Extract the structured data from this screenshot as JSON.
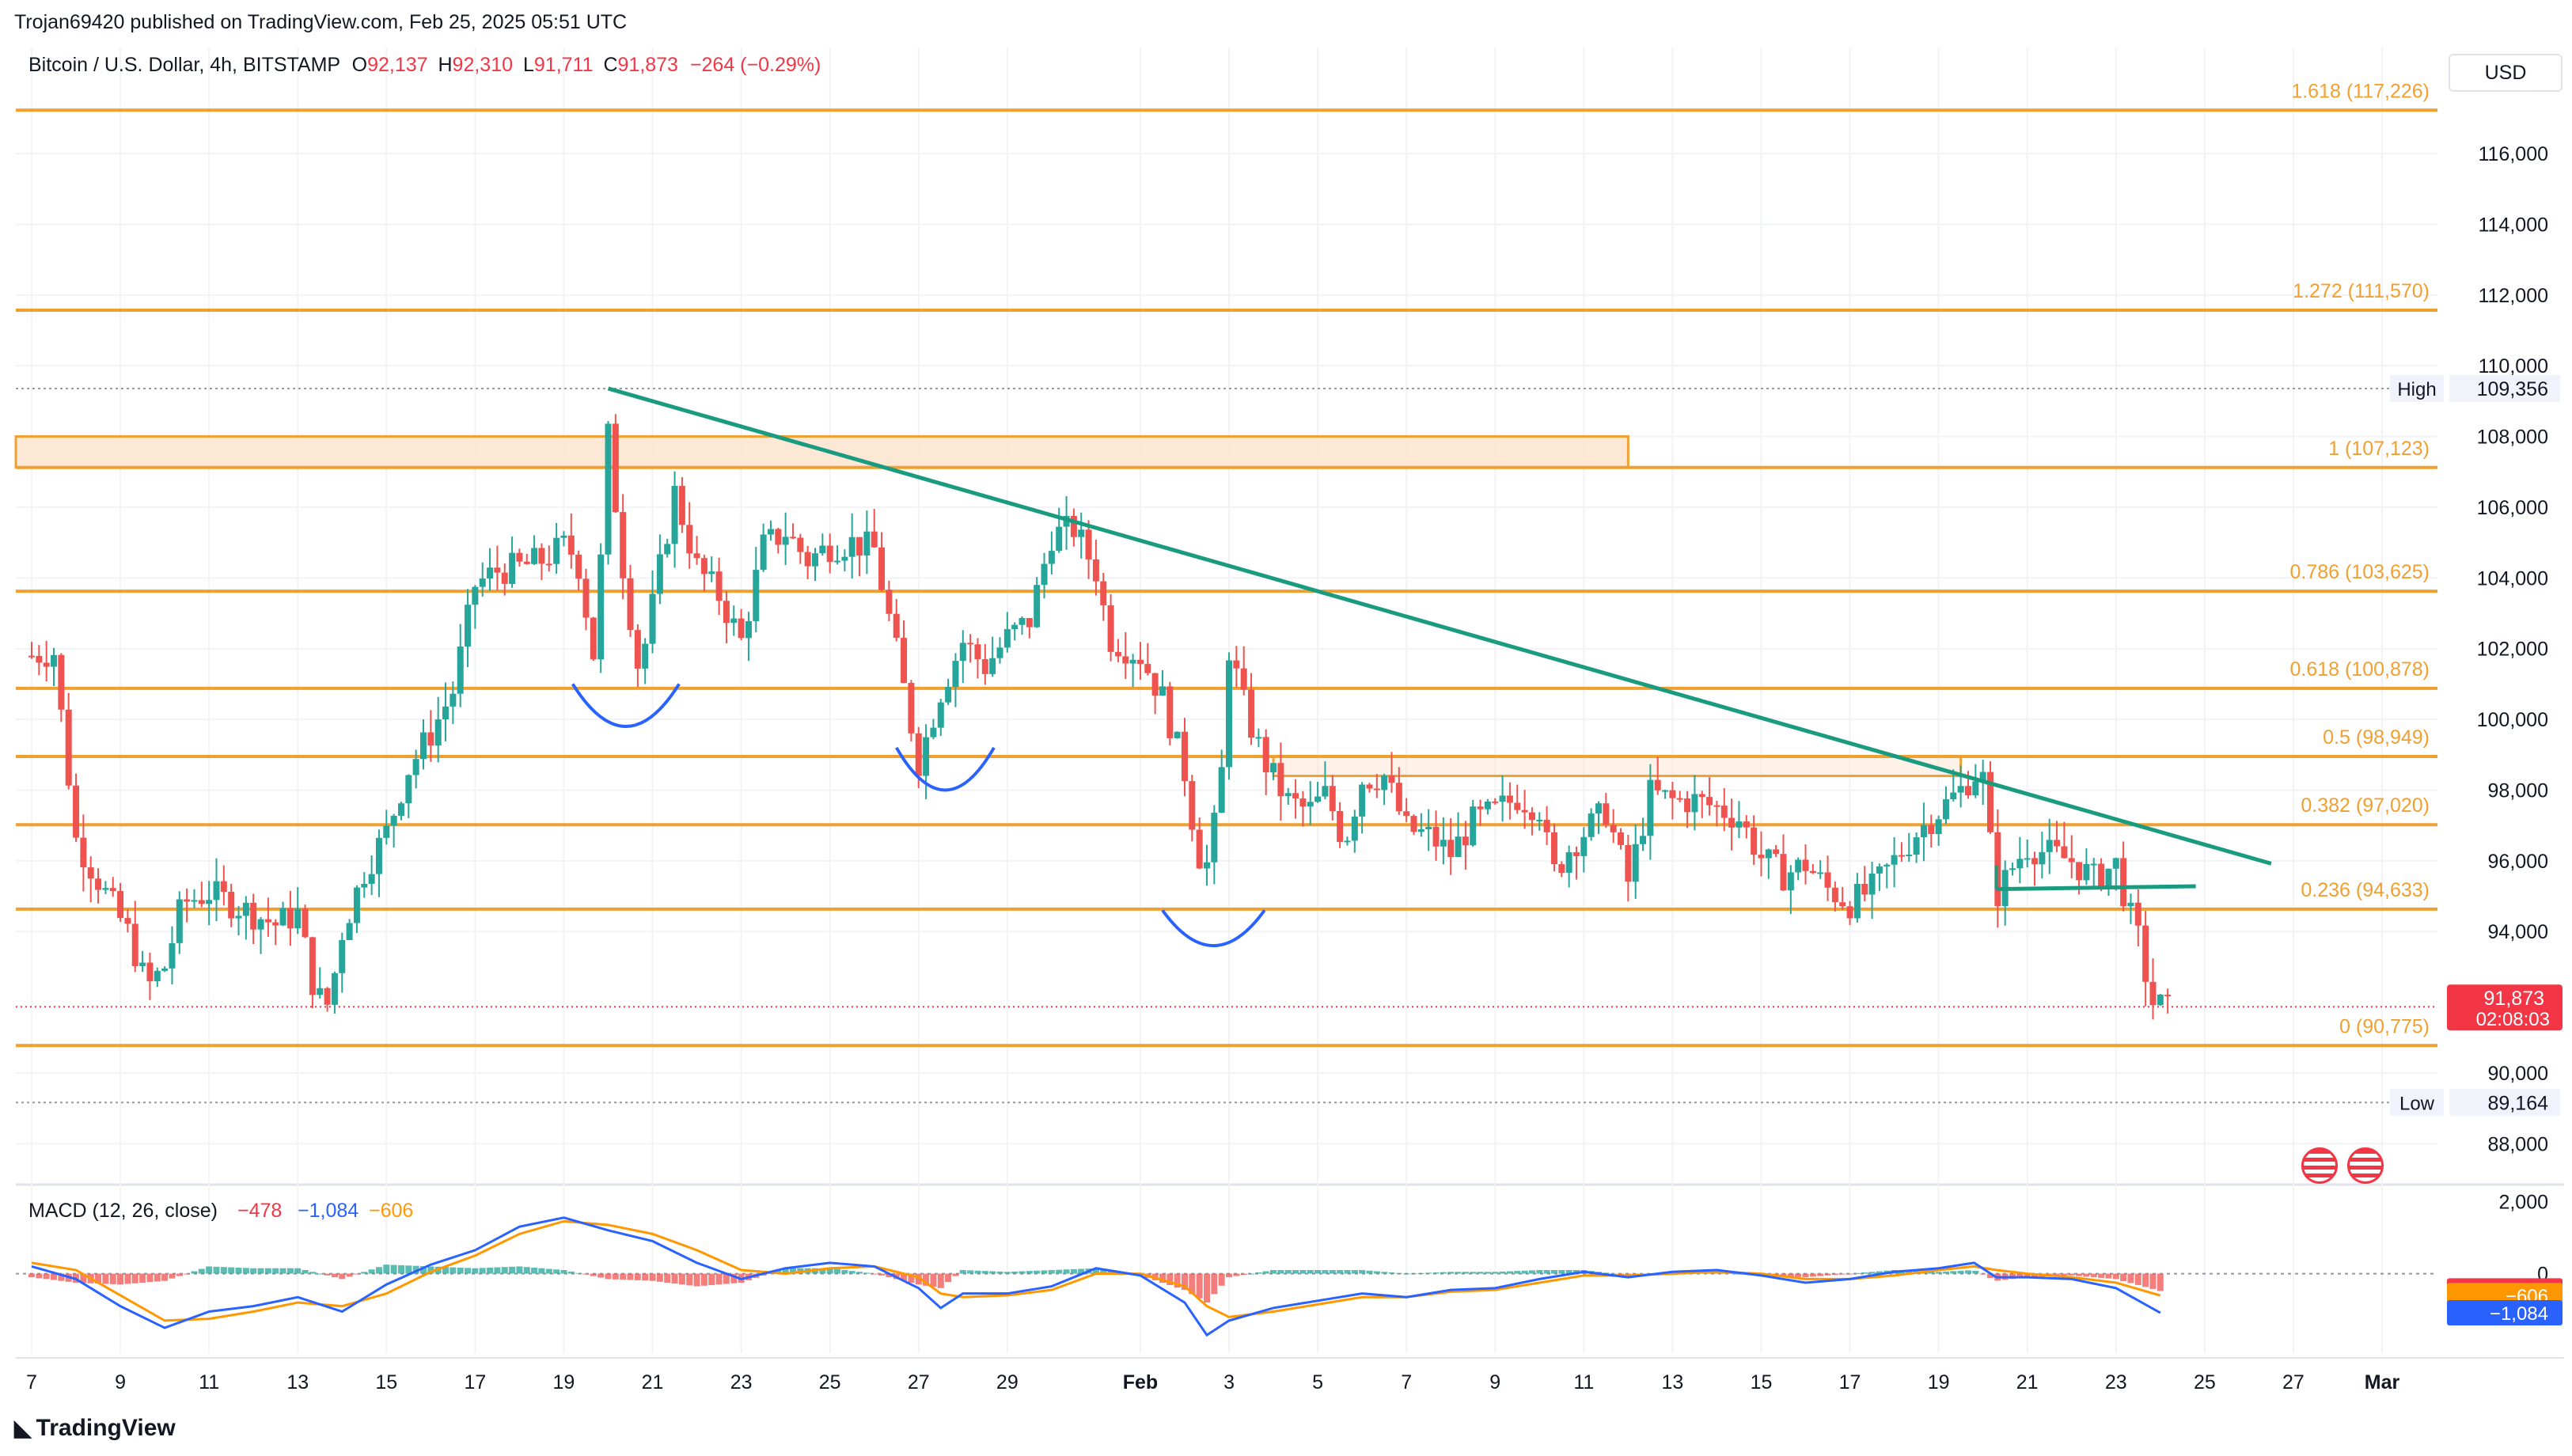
{
  "header": {
    "published": "Trojan69420 published on TradingView.com, Feb 25, 2025 05:51 UTC",
    "symbol": "Bitcoin / U.S. Dollar, 4h, BITSTAMP",
    "open_label": "O",
    "open": "92,137",
    "high_label": "H",
    "high": "92,310",
    "low_label": "L",
    "low": "91,711",
    "close_label": "C",
    "close": "91,873",
    "change": "−264 (−0.29%)",
    "currency": "USD"
  },
  "footer": {
    "brand": "TradingView"
  },
  "colors": {
    "up": "#26a69a",
    "down": "#ef5350",
    "fib": "#f0a030",
    "trend": "#1a9b80",
    "arc": "#2962ff",
    "macd": "#2962ff",
    "signal": "#ff9800",
    "price_tag": "#f23645"
  },
  "chart_data": [
    {
      "type": "candlestick",
      "interval": "4h",
      "x_ticks": [
        "7",
        "9",
        "11",
        "13",
        "15",
        "17",
        "19",
        "21",
        "23",
        "25",
        "27",
        "29",
        "Feb",
        "3",
        "5",
        "7",
        "9",
        "11",
        "13",
        "15",
        "17",
        "19",
        "21",
        "23",
        "25",
        "27",
        "Mar"
      ],
      "y_ticks": [
        "116,000",
        "114,000",
        "112,000",
        "110,000",
        "108,000",
        "106,000",
        "104,000",
        "102,000",
        "100,000",
        "98,000",
        "96,000",
        "94,000",
        "90,000",
        "88,000"
      ],
      "ylim": [
        87000,
        119000
      ],
      "price_path": [
        [
          7,
          101.8
        ],
        [
          7.5,
          101.9
        ],
        [
          8,
          96.6
        ],
        [
          8.7,
          95.0
        ],
        [
          9.2,
          93.9
        ],
        [
          9.6,
          92.4
        ],
        [
          10,
          93.0
        ],
        [
          10.4,
          94.8
        ],
        [
          11,
          95.1
        ],
        [
          11.5,
          94.8
        ],
        [
          12,
          94.5
        ],
        [
          12.5,
          94.2
        ],
        [
          13,
          94.5
        ],
        [
          13.4,
          92.2
        ],
        [
          13.7,
          91.9
        ],
        [
          14,
          94.0
        ],
        [
          14.5,
          95.7
        ],
        [
          15,
          96.8
        ],
        [
          15.5,
          98.6
        ],
        [
          16,
          99.6
        ],
        [
          16.5,
          100.8
        ],
        [
          17,
          103.8
        ],
        [
          17.5,
          104.2
        ],
        [
          18,
          104.3
        ],
        [
          18.5,
          104.5
        ],
        [
          19,
          104.9
        ],
        [
          19.3,
          104.6
        ],
        [
          19.7,
          101.6
        ],
        [
          20,
          108.0
        ],
        [
          20.3,
          104.6
        ],
        [
          20.7,
          101.3
        ],
        [
          21,
          103.2
        ],
        [
          21.5,
          106.4
        ],
        [
          22,
          104.3
        ],
        [
          22.5,
          103.5
        ],
        [
          23,
          102.2
        ],
        [
          23.5,
          104.9
        ],
        [
          24,
          105.3
        ],
        [
          24.5,
          104.5
        ],
        [
          25,
          104.9
        ],
        [
          25.5,
          105.0
        ],
        [
          26,
          104.8
        ],
        [
          26.5,
          101.9
        ],
        [
          27,
          98.8
        ],
        [
          27.5,
          100.8
        ],
        [
          28,
          102.2
        ],
        [
          28.5,
          101.5
        ],
        [
          29,
          102.3
        ],
        [
          29.5,
          102.8
        ],
        [
          30,
          105.2
        ],
        [
          30.5,
          105.4
        ],
        [
          31,
          104.2
        ],
        [
          31.3,
          102.3
        ],
        [
          31.7,
          102.0
        ],
        [
          32,
          101.8
        ],
        [
          32.5,
          100.6
        ],
        [
          33,
          98.5
        ],
        [
          33.3,
          96.2
        ],
        [
          33.5,
          95.9
        ],
        [
          33.8,
          97.8
        ],
        [
          34,
          102.0
        ],
        [
          34.4,
          100.1
        ],
        [
          34.8,
          98.8
        ],
        [
          35.3,
          97.7
        ],
        [
          35.8,
          97.4
        ],
        [
          36.2,
          97.9
        ],
        [
          36.6,
          96.5
        ],
        [
          37,
          98.3
        ],
        [
          37.5,
          98.4
        ],
        [
          38,
          96.9
        ],
        [
          38.5,
          96.7
        ],
        [
          39,
          96.2
        ],
        [
          39.5,
          97.1
        ],
        [
          40,
          97.4
        ],
        [
          40.5,
          97.8
        ],
        [
          41,
          97.5
        ],
        [
          41.3,
          95.6
        ],
        [
          41.7,
          96.4
        ],
        [
          42,
          96.8
        ],
        [
          42.5,
          97.4
        ],
        [
          43,
          95.4
        ],
        [
          43.5,
          97.9
        ],
        [
          44,
          97.7
        ],
        [
          44.5,
          97.7
        ],
        [
          45,
          97.5
        ],
        [
          45.5,
          97.2
        ],
        [
          46,
          96.1
        ],
        [
          46.5,
          95.6
        ],
        [
          47,
          95.9
        ],
        [
          47.5,
          95.2
        ],
        [
          48,
          94.8
        ],
        [
          48.5,
          95.2
        ],
        [
          49,
          96.0
        ],
        [
          49.5,
          96.8
        ],
        [
          50,
          97.4
        ],
        [
          50.5,
          98.0
        ],
        [
          50.8,
          98.5
        ],
        [
          51,
          98.3
        ],
        [
          51.3,
          95.0
        ],
        [
          51.7,
          95.9
        ],
        [
          52,
          96.4
        ],
        [
          52.5,
          96.2
        ],
        [
          53,
          96.0
        ],
        [
          53.5,
          95.5
        ],
        [
          54,
          95.9
        ],
        [
          54.3,
          94.5
        ],
        [
          54.5,
          93.8
        ],
        [
          54.8,
          92.0
        ],
        [
          55,
          91.9
        ],
        [
          55.2,
          91.8
        ]
      ],
      "annotations": [
        "High 109,356",
        "Low 89,164",
        "91,873",
        "02:08:03"
      ]
    },
    {
      "type": "horizontal_levels",
      "series": [
        {
          "name": "1.618 (117,226)",
          "value": 117226
        },
        {
          "name": "1.272 (111,570)",
          "value": 111570
        },
        {
          "name": "1 (107,123)",
          "value": 107123
        },
        {
          "name": "0.786 (103,625)",
          "value": 103625
        },
        {
          "name": "0.618 (100,878)",
          "value": 100878
        },
        {
          "name": "0.5 (98,949)",
          "value": 98949
        },
        {
          "name": "0.382 (97,020)",
          "value": 97020
        },
        {
          "name": "0.236 (94,633)",
          "value": 94633
        },
        {
          "name": "0 (90,775)",
          "value": 90775
        }
      ],
      "zones": [
        {
          "x": [
            7,
            43
          ],
          "y": [
            107123,
            108000
          ]
        },
        {
          "x": [
            35,
            50.5
          ],
          "y": [
            98400,
            98949
          ]
        }
      ],
      "trendline": {
        "x": [
          20,
          57.5
        ],
        "y": [
          109356,
          95920
        ]
      },
      "neckline": {
        "x": [
          51.3,
          55.8
        ],
        "y": [
          95200,
          95280
        ]
      },
      "arcs": [
        {
          "x": [
            19.2,
            21.6
          ],
          "center_y": 101000,
          "bottom_y": 99800
        },
        {
          "x": [
            26.5,
            28.7
          ],
          "center_y": 99200,
          "bottom_y": 98000
        },
        {
          "x": [
            32.5,
            34.8
          ],
          "center_y": 94600,
          "bottom_y": 93600
        }
      ]
    },
    {
      "type": "macd",
      "title": "MACD (12, 26, close)",
      "values_text": [
        "−478",
        "−1,084",
        "−606"
      ],
      "y_ticks": [
        "2,000",
        "0"
      ],
      "ylim": [
        -2200,
        2400
      ],
      "series": [
        {
          "points": [
            [
              7,
              200
            ],
            [
              8,
              -150
            ],
            [
              9,
              -900
            ],
            [
              10,
              -1500
            ],
            [
              11,
              -1050
            ],
            [
              12,
              -900
            ],
            [
              13,
              -650
            ],
            [
              14,
              -1050
            ],
            [
              15,
              -300
            ],
            [
              16,
              250
            ],
            [
              17,
              650
            ],
            [
              18,
              1300
            ],
            [
              19,
              1550
            ],
            [
              20,
              1200
            ],
            [
              21,
              900
            ],
            [
              22,
              300
            ],
            [
              23,
              -150
            ],
            [
              24,
              150
            ],
            [
              25,
              300
            ],
            [
              26,
              200
            ],
            [
              27,
              -400
            ],
            [
              27.5,
              -950
            ],
            [
              28,
              -550
            ],
            [
              29,
              -550
            ],
            [
              30,
              -350
            ],
            [
              31,
              150
            ],
            [
              32,
              -50
            ],
            [
              33,
              -800
            ],
            [
              33.5,
              -1700
            ],
            [
              34,
              -1300
            ],
            [
              35,
              -950
            ],
            [
              36,
              -750
            ],
            [
              37,
              -550
            ],
            [
              38,
              -650
            ],
            [
              39,
              -450
            ],
            [
              40,
              -400
            ],
            [
              41,
              -150
            ],
            [
              42,
              50
            ],
            [
              43,
              -100
            ],
            [
              44,
              50
            ],
            [
              45,
              100
            ],
            [
              46,
              -50
            ],
            [
              47,
              -250
            ],
            [
              48,
              -150
            ],
            [
              49,
              50
            ],
            [
              50,
              150
            ],
            [
              50.8,
              300
            ],
            [
              51.3,
              -100
            ],
            [
              52,
              -100
            ],
            [
              53,
              -150
            ],
            [
              54,
              -400
            ],
            [
              55,
              -1084
            ]
          ]
        },
        {
          "points": [
            [
              7,
              300
            ],
            [
              8,
              100
            ],
            [
              9,
              -600
            ],
            [
              10,
              -1300
            ],
            [
              11,
              -1250
            ],
            [
              12,
              -1050
            ],
            [
              13,
              -800
            ],
            [
              14,
              -900
            ],
            [
              15,
              -550
            ],
            [
              16,
              50
            ],
            [
              17,
              500
            ],
            [
              18,
              1100
            ],
            [
              19,
              1450
            ],
            [
              20,
              1350
            ],
            [
              21,
              1100
            ],
            [
              22,
              650
            ],
            [
              23,
              100
            ],
            [
              24,
              0
            ],
            [
              25,
              150
            ],
            [
              26,
              200
            ],
            [
              27,
              -100
            ],
            [
              27.5,
              -550
            ],
            [
              28,
              -650
            ],
            [
              29,
              -600
            ],
            [
              30,
              -450
            ],
            [
              31,
              0
            ],
            [
              32,
              0
            ],
            [
              33,
              -350
            ],
            [
              33.5,
              -900
            ],
            [
              34,
              -1200
            ],
            [
              35,
              -1050
            ],
            [
              36,
              -850
            ],
            [
              37,
              -650
            ],
            [
              38,
              -650
            ],
            [
              39,
              -500
            ],
            [
              40,
              -450
            ],
            [
              41,
              -250
            ],
            [
              42,
              -50
            ],
            [
              43,
              -50
            ],
            [
              44,
              0
            ],
            [
              45,
              50
            ],
            [
              46,
              0
            ],
            [
              47,
              -150
            ],
            [
              48,
              -150
            ],
            [
              49,
              -50
            ],
            [
              50,
              100
            ],
            [
              50.8,
              200
            ],
            [
              51.3,
              100
            ],
            [
              52,
              0
            ],
            [
              53,
              -100
            ],
            [
              54,
              -250
            ],
            [
              55,
              -606
            ]
          ]
        }
      ]
    }
  ]
}
